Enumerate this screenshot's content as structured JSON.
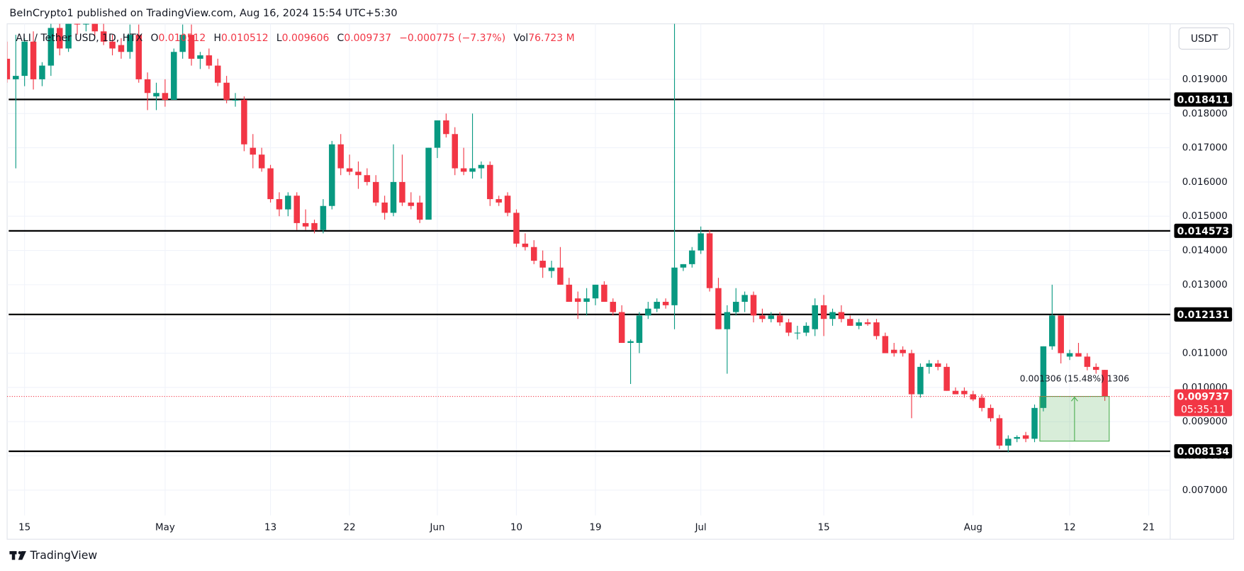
{
  "header": {
    "published": "BeInCrypto1 published on TradingView.com, Aug 16, 2024 15:54 UTC+5:30",
    "currency_button": "USDT",
    "footer_brand": "TradingView"
  },
  "legend": {
    "symbol": "ALI / Tether USD, 1D, HTX",
    "o": "O",
    "h": "H",
    "l": "L",
    "c": "C",
    "change": "−0.000775 (−7.37%)",
    "vol_label": "Vol",
    "volume": "76.723 M"
  },
  "chart_data": {
    "type": "candlestick",
    "categories": [
      null,
      null,
      "15",
      null,
      null,
      null,
      null,
      null,
      null,
      null,
      null,
      null,
      null,
      null,
      null,
      null,
      null,
      null,
      "May",
      null,
      null,
      null,
      null,
      null,
      null,
      null,
      null,
      null,
      null,
      null,
      "13",
      null,
      null,
      null,
      null,
      null,
      null,
      null,
      null,
      "22",
      null,
      null,
      null,
      null,
      null,
      null,
      null,
      null,
      null,
      "Jun",
      null,
      null,
      null,
      null,
      null,
      null,
      null,
      null,
      "10",
      null,
      null,
      null,
      null,
      null,
      null,
      null,
      null,
      "19",
      null,
      null,
      null,
      null,
      null,
      null,
      null,
      null,
      null,
      null,
      null,
      "Jul",
      null,
      null,
      null,
      null,
      null,
      null,
      null,
      null,
      null,
      null,
      null,
      null,
      null,
      "15",
      null,
      null,
      null,
      null,
      null,
      null,
      null,
      null,
      null,
      null,
      null,
      null,
      null,
      null,
      null,
      null,
      "Aug",
      null,
      null,
      null,
      null,
      null,
      null,
      null,
      null,
      null,
      null,
      "12",
      null,
      null,
      null,
      null,
      null,
      null,
      null,
      null,
      "21",
      null,
      null
    ],
    "open": [
      0.0196,
      0.019,
      0.0191,
      0.0201,
      0.019,
      0.0194,
      0.0205,
      0.0199,
      0.0209,
      0.0206,
      0.0211,
      0.0204,
      0.0201,
      0.02,
      0.0198,
      0.0203,
      0.019,
      0.0185,
      0.0186,
      0.0184,
      0.0198,
      0.0203,
      0.0196,
      0.0197,
      0.0194,
      0.0189,
      0.0184,
      0.0184,
      0.017,
      0.0168,
      0.0164,
      0.0155,
      0.0152,
      0.0156,
      0.0148,
      0.0148,
      0.0146,
      0.0153,
      0.0171,
      0.0164,
      0.0163,
      0.0162,
      0.016,
      0.0154,
      0.0151,
      0.016,
      0.0154,
      0.0154,
      0.0149,
      0.017,
      0.0178,
      0.0174,
      0.0164,
      0.0163,
      0.0164,
      0.0165,
      0.0155,
      0.0156,
      0.0151,
      0.0142,
      0.0141,
      0.0137,
      0.0134,
      0.0135,
      0.013,
      0.0126,
      0.0125,
      0.0126,
      0.013,
      0.0125,
      0.0122,
      0.0113,
      0.0113,
      0.0121,
      0.0123,
      0.0125,
      0.0124,
      0.0135,
      0.0136,
      0.014,
      0.0145,
      0.0129,
      0.0117,
      0.0122,
      0.0125,
      0.0127,
      0.0121,
      0.012,
      0.0121,
      0.0119,
      0.0116,
      0.0116,
      0.0117,
      0.0124,
      0.012,
      0.0122,
      0.012,
      0.0118,
      0.0119,
      0.0119,
      0.0115,
      0.0111,
      0.0111,
      0.011,
      0.0098,
      0.0106,
      0.0107,
      0.0106,
      0.0099,
      0.0099,
      0.0098,
      0.0097,
      0.0094,
      0.0091,
      0.0083,
      0.0085,
      0.0086,
      0.0085,
      0.0094,
      0.0112,
      0.0121,
      0.0109,
      0.011,
      0.0109,
      0.0106,
      0.010512,
      null,
      null,
      null,
      null,
      null,
      null,
      null
    ],
    "high": [
      0.0201,
      0.0203,
      0.0202,
      0.0204,
      0.0195,
      0.0207,
      0.021,
      0.0212,
      0.0213,
      0.0214,
      0.0213,
      0.0207,
      0.0203,
      0.0202,
      0.0206,
      0.0206,
      0.0192,
      0.0189,
      0.019,
      0.0199,
      0.0206,
      0.0206,
      0.0198,
      0.0199,
      0.0196,
      0.0191,
      0.0186,
      0.0185,
      0.0174,
      0.017,
      0.0165,
      0.0157,
      0.0157,
      0.0157,
      0.0152,
      0.0149,
      0.0155,
      0.0172,
      0.0174,
      0.0168,
      0.0166,
      0.0164,
      0.0162,
      0.0156,
      0.0171,
      0.0168,
      0.0157,
      0.0156,
      0.017,
      0.0178,
      0.018,
      0.0176,
      0.017,
      0.018,
      0.0166,
      0.0166,
      0.0156,
      0.0157,
      0.0152,
      0.0145,
      0.0143,
      0.014,
      0.0137,
      0.0141,
      0.0132,
      0.0128,
      0.0129,
      0.013,
      0.0131,
      0.0126,
      0.0124,
      0.0114,
      0.0122,
      0.0125,
      0.0126,
      0.0126,
      0.0207,
      0.0136,
      0.0141,
      0.0147,
      0.0146,
      0.0132,
      0.0124,
      0.0129,
      0.0128,
      0.0128,
      0.0123,
      0.0122,
      0.0122,
      0.012,
      0.0118,
      0.0119,
      0.0126,
      0.0127,
      0.0123,
      0.0124,
      0.0121,
      0.012,
      0.012,
      0.012,
      0.0116,
      0.0113,
      0.0112,
      0.0111,
      0.0107,
      0.0108,
      0.0108,
      0.0107,
      0.01,
      0.01,
      0.0099,
      0.0098,
      0.0095,
      0.0092,
      0.0086,
      0.0086,
      0.0087,
      0.0095,
      0.0112,
      0.013,
      0.0121,
      0.0111,
      0.0113,
      0.011,
      0.0107,
      0.010512,
      null,
      null,
      null,
      null,
      null,
      null,
      null
    ],
    "low": [
      0.0189,
      0.0164,
      0.0188,
      0.0187,
      0.0188,
      0.0191,
      0.0197,
      0.0198,
      0.0203,
      0.0204,
      0.0202,
      0.02,
      0.0197,
      0.0196,
      0.0196,
      0.0189,
      0.0181,
      0.0181,
      0.0182,
      0.0184,
      0.0196,
      0.0194,
      0.0193,
      0.0193,
      0.0188,
      0.0183,
      0.0182,
      0.0169,
      0.0164,
      0.0163,
      0.0154,
      0.015,
      0.015,
      0.0146,
      0.0146,
      0.0145,
      0.0145,
      0.0152,
      0.0162,
      0.0162,
      0.0158,
      0.0159,
      0.0153,
      0.0149,
      0.015,
      0.0153,
      0.0152,
      0.0148,
      0.0149,
      0.0167,
      0.0173,
      0.0162,
      0.0162,
      0.0161,
      0.0161,
      0.0153,
      0.0153,
      0.015,
      0.0141,
      0.014,
      0.0136,
      0.0132,
      0.0132,
      0.013,
      0.0125,
      0.012,
      0.0121,
      0.0124,
      0.0125,
      0.0121,
      0.0113,
      0.0101,
      0.011,
      0.012,
      0.0122,
      0.0123,
      0.0117,
      0.0134,
      0.0135,
      0.0139,
      0.0128,
      0.0117,
      0.0104,
      0.0121,
      0.0122,
      0.0119,
      0.0119,
      0.0119,
      0.0118,
      0.0115,
      0.0114,
      0.0115,
      0.0115,
      0.0115,
      0.0118,
      0.0119,
      0.0118,
      0.0117,
      0.0118,
      0.0114,
      0.011,
      0.0109,
      0.0109,
      0.0091,
      0.0097,
      0.0104,
      0.0105,
      0.0099,
      0.0098,
      0.0097,
      0.0096,
      0.0093,
      0.009,
      0.0082,
      0.0081,
      0.0084,
      0.0084,
      0.0084,
      0.0093,
      0.0111,
      0.0107,
      0.0108,
      0.0109,
      0.0105,
      0.0104,
      0.009606,
      null,
      null,
      null,
      null,
      null,
      null,
      null
    ],
    "close": [
      0.019,
      0.0191,
      0.0201,
      0.019,
      0.0194,
      0.0205,
      0.0199,
      0.0209,
      0.0206,
      0.0211,
      0.0204,
      0.0201,
      0.0199,
      0.0198,
      0.0203,
      0.019,
      0.0186,
      0.0186,
      0.0184,
      0.0198,
      0.0203,
      0.0196,
      0.0197,
      0.0194,
      0.0189,
      0.0184,
      0.0184,
      0.0171,
      0.0168,
      0.0164,
      0.0155,
      0.0152,
      0.0156,
      0.0148,
      0.0147,
      0.0146,
      0.0153,
      0.0171,
      0.0164,
      0.0163,
      0.0162,
      0.016,
      0.0154,
      0.0151,
      0.016,
      0.0154,
      0.0153,
      0.0149,
      0.017,
      0.0178,
      0.0174,
      0.0164,
      0.0163,
      0.0164,
      0.0165,
      0.0155,
      0.0154,
      0.0151,
      0.0142,
      0.0141,
      0.0137,
      0.0135,
      0.0135,
      0.013,
      0.0125,
      0.0125,
      0.0126,
      0.013,
      0.0125,
      0.0122,
      0.0113,
      0.01135,
      0.0121,
      0.0123,
      0.0125,
      0.0124,
      0.0135,
      0.0136,
      0.014,
      0.0145,
      0.0129,
      0.0117,
      0.0122,
      0.0125,
      0.0127,
      0.0121,
      0.012,
      0.0121,
      0.0119,
      0.0116,
      0.0116,
      0.0118,
      0.0124,
      0.012,
      0.0122,
      0.012,
      0.0118,
      0.0119,
      0.01185,
      0.0115,
      0.011,
      0.011,
      0.011,
      0.0098,
      0.0106,
      0.0107,
      0.0106,
      0.0099,
      0.0098,
      0.0098,
      0.00965,
      0.0094,
      0.0091,
      0.0083,
      0.0085,
      0.00855,
      0.0085,
      0.0094,
      0.0112,
      0.0121,
      0.011,
      0.011,
      0.0109,
      0.0106,
      0.010512,
      0.009737,
      null,
      null,
      null,
      null,
      null,
      null,
      null
    ],
    "up_color": "#089981",
    "down_color": "#f23645",
    "ylim": [
      0.00626,
      0.02062
    ],
    "yticks": [
      {
        "value": 0.007,
        "label": "0.007000"
      },
      {
        "value": 0.008,
        "label": "0.008000"
      },
      {
        "value": 0.009,
        "label": "0.009000"
      },
      {
        "value": 0.01,
        "label": "0.010000"
      },
      {
        "value": 0.011,
        "label": "0.011000"
      },
      {
        "value": 0.012,
        "label": "0.012000"
      },
      {
        "value": 0.013,
        "label": "0.013000"
      },
      {
        "value": 0.014,
        "label": "0.014000"
      },
      {
        "value": 0.015,
        "label": "0.015000"
      },
      {
        "value": 0.016,
        "label": "0.016000"
      },
      {
        "value": 0.017,
        "label": "0.017000"
      },
      {
        "value": 0.018,
        "label": "0.018000"
      },
      {
        "value": 0.019,
        "label": "0.019000"
      }
    ],
    "grid": true,
    "levels": [
      0.018411,
      0.014573,
      0.012131,
      0.008134
    ],
    "level_color": "#000000",
    "countdown": "05:35:11",
    "measure": {
      "from": 0.008431,
      "to": 0.009737,
      "label": "0.001306 (15.48%) 1306",
      "color": "#4caf50"
    }
  }
}
